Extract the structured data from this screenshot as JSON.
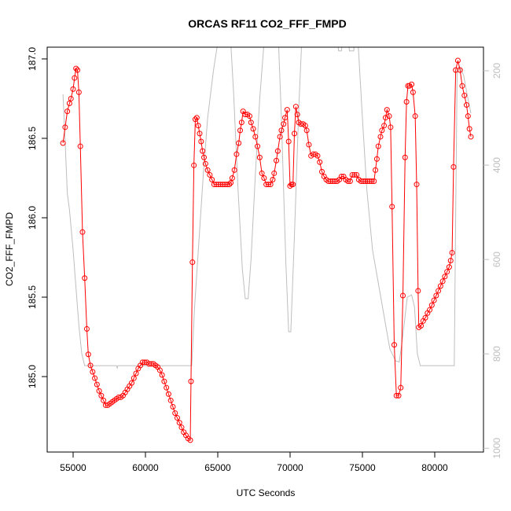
{
  "chart_data": {
    "type": "line",
    "title": "ORCAS RF11 CO2_FFF_FMPD",
    "xlabel": "UTC Seconds",
    "ylabel": "CO2_FFF_FMPD",
    "xlim": [
      53207,
      83370
    ],
    "xticks": [
      55000,
      60000,
      65000,
      70000,
      75000,
      80000
    ],
    "ylim": [
      184.525,
      187.074
    ],
    "yticks": [
      {
        "value": 185.0,
        "label": "185.0"
      },
      185.5,
      {
        "value": 186.0,
        "label": "186.0"
      },
      186.5,
      {
        "value": 187.0,
        "label": "187.0"
      }
    ],
    "y2lim": [
      1008,
      150
    ],
    "y2ticks": [
      200,
      400,
      600,
      800,
      1000
    ],
    "y2color": "#bebebe",
    "series": [
      {
        "color": "#bebebe",
        "axis": "y2",
        "style": "line",
        "x": [
          54300,
          54450,
          54600,
          54750,
          55000,
          55200,
          55400,
          55600,
          55800,
          58000,
          58050,
          58100,
          63200,
          63400,
          63700,
          64000,
          64300,
          64700,
          65000,
          65900,
          66100,
          66400,
          66700,
          66900,
          67100,
          67300,
          67600,
          67900,
          68200,
          69200,
          69400,
          69700,
          69900,
          70050,
          70300,
          70600,
          70800,
          73300,
          73350,
          73550,
          73600,
          74050,
          74100,
          74400,
          74450,
          74700,
          75000,
          75300,
          75700,
          76100,
          76500,
          76900,
          77300,
          77550,
          77800,
          78100,
          78400,
          78600,
          78800,
          79000,
          81350,
          81450,
          81550,
          81700,
          82000,
          82300,
          82500
        ],
        "values": [
          250,
          350,
          460,
          495,
          580,
          660,
          740,
          800,
          825,
          825,
          830,
          825,
          825,
          700,
          560,
          420,
          300,
          200,
          140,
          140,
          250,
          450,
          620,
          683,
          683,
          600,
          420,
          260,
          140,
          140,
          300,
          600,
          753,
          753,
          550,
          280,
          140,
          140,
          158,
          158,
          140,
          140,
          158,
          158,
          140,
          140,
          300,
          450,
          580,
          650,
          720,
          790,
          815,
          817,
          760,
          680,
          675,
          700,
          800,
          825,
          825,
          500,
          200,
          190,
          210,
          260,
          290
        ]
      },
      {
        "color": "#ff0000",
        "style": "both",
        "x": [
          54300,
          54450,
          54600,
          54750,
          54850,
          55000,
          55100,
          55200,
          55300,
          55400,
          55500,
          55650,
          55800,
          55950,
          56050,
          56200,
          56350,
          56500,
          56650,
          56800,
          56950,
          57100,
          57250,
          57400,
          57550,
          57700,
          57850,
          58000,
          58150,
          58300,
          58450,
          58600,
          58750,
          58900,
          59050,
          59200,
          59350,
          59500,
          59650,
          59800,
          59950,
          60100,
          60250,
          60400,
          60550,
          60700,
          60850,
          61000,
          61150,
          61300,
          61450,
          61600,
          61750,
          61900,
          62050,
          62200,
          62350,
          62500,
          62650,
          62800,
          62950,
          63100,
          63150,
          63250,
          63350,
          63450,
          63550,
          63650,
          63750,
          63850,
          63950,
          64050,
          64150,
          64300,
          64450,
          64600,
          64750,
          64900,
          65050,
          65200,
          65350,
          65500,
          65650,
          65800,
          65900,
          66000,
          66150,
          66300,
          66450,
          66550,
          66650,
          66750,
          66900,
          67050,
          67200,
          67300,
          67450,
          67600,
          67750,
          67900,
          68050,
          68200,
          68350,
          68500,
          68650,
          68800,
          68900,
          69050,
          69150,
          69300,
          69400,
          69550,
          69650,
          69800,
          69900,
          70000,
          70100,
          70200,
          70300,
          70400,
          70500,
          70600,
          70750,
          70900,
          71050,
          71150,
          71300,
          71450,
          71600,
          71750,
          71900,
          72050,
          72200,
          72350,
          72500,
          72650,
          72800,
          72950,
          73100,
          73250,
          73400,
          73550,
          73700,
          73850,
          74000,
          74150,
          74300,
          74450,
          74600,
          74750,
          74900,
          75050,
          75200,
          75350,
          75500,
          75650,
          75800,
          75900,
          76000,
          76100,
          76250,
          76350,
          76500,
          76600,
          76700,
          76850,
          76950,
          77050,
          77200,
          77350,
          77500,
          77650,
          77800,
          77950,
          78050,
          78150,
          78250,
          78400,
          78500,
          78650,
          78750,
          78850,
          78900,
          79050,
          79200,
          79350,
          79500,
          79650,
          79800,
          79950,
          80100,
          80250,
          80400,
          80550,
          80700,
          80850,
          81000,
          81100,
          81200,
          81300,
          81450,
          81600,
          81750,
          81900,
          82050,
          82200,
          82300,
          82400,
          82500
        ],
        "values": [
          186.47,
          186.57,
          186.67,
          186.72,
          186.75,
          186.81,
          186.88,
          186.94,
          186.93,
          186.79,
          186.45,
          185.91,
          185.62,
          185.3,
          185.14,
          185.07,
          185.03,
          184.99,
          184.95,
          184.91,
          184.88,
          184.85,
          184.82,
          184.82,
          184.83,
          184.84,
          184.85,
          184.86,
          184.87,
          184.87,
          184.88,
          184.9,
          184.92,
          184.94,
          184.96,
          184.99,
          185.02,
          185.05,
          185.07,
          185.09,
          185.09,
          185.09,
          185.08,
          185.08,
          185.08,
          185.07,
          185.06,
          185.04,
          185.01,
          184.97,
          184.93,
          184.89,
          184.85,
          184.81,
          184.77,
          184.74,
          184.71,
          184.68,
          184.65,
          184.63,
          184.61,
          184.6,
          184.97,
          185.72,
          186.33,
          186.62,
          186.63,
          186.58,
          186.53,
          186.48,
          186.42,
          186.38,
          186.34,
          186.3,
          186.27,
          186.24,
          186.21,
          186.21,
          186.21,
          186.21,
          186.21,
          186.21,
          186.21,
          186.21,
          186.22,
          186.25,
          186.3,
          186.4,
          186.47,
          186.55,
          186.6,
          186.67,
          186.65,
          186.65,
          186.64,
          186.6,
          186.56,
          186.51,
          186.45,
          186.38,
          186.28,
          186.25,
          186.21,
          186.21,
          186.21,
          186.24,
          186.28,
          186.36,
          186.42,
          186.51,
          186.55,
          186.59,
          186.63,
          186.68,
          186.48,
          186.2,
          186.21,
          186.21,
          186.53,
          186.7,
          186.65,
          186.6,
          186.59,
          186.59,
          186.58,
          186.55,
          186.46,
          186.39,
          186.4,
          186.4,
          186.39,
          186.35,
          186.29,
          186.26,
          186.24,
          186.23,
          186.23,
          186.23,
          186.23,
          186.23,
          186.24,
          186.26,
          186.26,
          186.24,
          186.23,
          186.23,
          186.27,
          186.27,
          186.27,
          186.24,
          186.23,
          186.23,
          186.23,
          186.23,
          186.23,
          186.23,
          186.23,
          186.3,
          186.37,
          186.45,
          186.51,
          186.55,
          186.58,
          186.63,
          186.68,
          186.64,
          186.57,
          186.07,
          185.2,
          184.88,
          184.88,
          184.93,
          185.51,
          186.38,
          186.73,
          186.83,
          186.83,
          186.84,
          186.79,
          186.64,
          186.21,
          185.54,
          185.31,
          185.32,
          185.35,
          185.37,
          185.4,
          185.42,
          185.45,
          185.48,
          185.51,
          185.54,
          185.57,
          185.6,
          185.63,
          185.66,
          185.69,
          185.73,
          185.78,
          186.32,
          186.93,
          186.99,
          186.93,
          186.83,
          186.77,
          186.71,
          186.64,
          186.56,
          186.51
        ]
      }
    ]
  }
}
